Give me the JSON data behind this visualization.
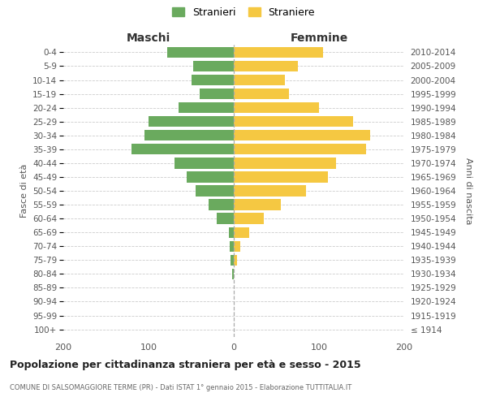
{
  "age_groups": [
    "100+",
    "95-99",
    "90-94",
    "85-89",
    "80-84",
    "75-79",
    "70-74",
    "65-69",
    "60-64",
    "55-59",
    "50-54",
    "45-49",
    "40-44",
    "35-39",
    "30-34",
    "25-29",
    "20-24",
    "15-19",
    "10-14",
    "5-9",
    "0-4"
  ],
  "birth_years": [
    "≤ 1914",
    "1915-1919",
    "1920-1924",
    "1925-1929",
    "1930-1934",
    "1935-1939",
    "1940-1944",
    "1945-1949",
    "1950-1954",
    "1955-1959",
    "1960-1964",
    "1965-1969",
    "1970-1974",
    "1975-1979",
    "1980-1984",
    "1985-1989",
    "1990-1994",
    "1995-1999",
    "2000-2004",
    "2005-2009",
    "2010-2014"
  ],
  "males": [
    0,
    0,
    0,
    0,
    2,
    4,
    5,
    6,
    20,
    30,
    45,
    55,
    70,
    120,
    105,
    100,
    65,
    40,
    50,
    48,
    78
  ],
  "females": [
    0,
    0,
    0,
    0,
    0,
    4,
    8,
    18,
    35,
    55,
    85,
    110,
    120,
    155,
    160,
    140,
    100,
    65,
    60,
    75,
    105
  ],
  "male_color": "#6aaa5e",
  "female_color": "#f5c842",
  "background_color": "#ffffff",
  "grid_color": "#cccccc",
  "title": "Popolazione per cittadinanza straniera per età e sesso - 2015",
  "subtitle": "COMUNE DI SALSOMAGGIORE TERME (PR) - Dati ISTAT 1° gennaio 2015 - Elaborazione TUTTITALIA.IT",
  "left_header": "Maschi",
  "right_header": "Femmine",
  "ylabel_left": "Fasce di età",
  "ylabel_right": "Anni di nascita",
  "legend_male": "Stranieri",
  "legend_female": "Straniere",
  "xlim": 200,
  "bar_height": 0.78
}
